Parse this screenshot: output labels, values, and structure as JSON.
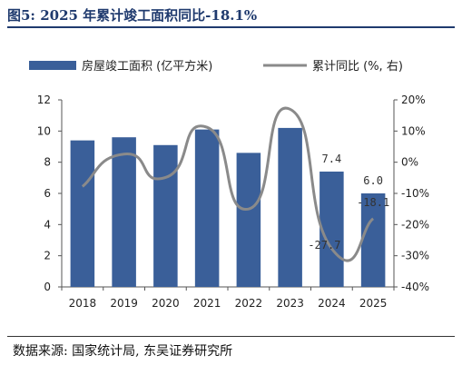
{
  "title": "图5:  2025 年累计竣工面积同比-18.1%",
  "source": "数据来源:  国家统计局,  东吴证券研究所",
  "colors": {
    "bar": "#3a5f99",
    "line": "#8a8a8a",
    "title": "#1f3a6e"
  },
  "chart_data": {
    "type": "bar+line",
    "categories": [
      "2018",
      "2019",
      "2020",
      "2021",
      "2022",
      "2023",
      "2024",
      "2025"
    ],
    "series": [
      {
        "name": "房屋竣工面积 (亿平方米)",
        "type": "bar",
        "axis": "left",
        "values": [
          9.4,
          9.6,
          9.1,
          10.1,
          8.6,
          10.2,
          7.4,
          6.0
        ]
      },
      {
        "name": "累计同比 (%, 右)",
        "type": "line",
        "axis": "right",
        "values": [
          -7.8,
          2.6,
          -4.9,
          11.2,
          -15.0,
          17.0,
          -27.7,
          -18.1
        ]
      }
    ],
    "left_axis": {
      "ylim": [
        0,
        12
      ],
      "ticks": [
        "0",
        "2",
        "4",
        "6",
        "8",
        "10",
        "12"
      ]
    },
    "right_axis": {
      "ylim": [
        -40,
        20
      ],
      "ticks": [
        "-40%",
        "-30%",
        "-20%",
        "-10%",
        "0%",
        "10%",
        "20%"
      ]
    },
    "data_labels": [
      {
        "series": 0,
        "index": 6,
        "text": "7.4"
      },
      {
        "series": 0,
        "index": 7,
        "text": "6.0"
      },
      {
        "series": 1,
        "index": 6,
        "text": "-27.7"
      },
      {
        "series": 1,
        "index": 7,
        "text": "-18.1"
      }
    ],
    "legend_position": "top",
    "grid": false
  }
}
